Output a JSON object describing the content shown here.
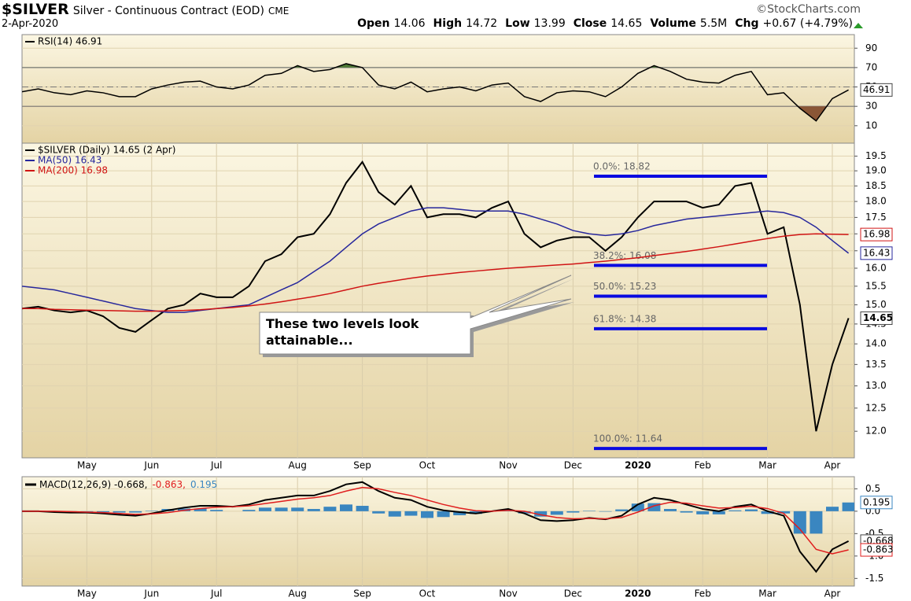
{
  "header": {
    "symbol": "$SILVER",
    "name": "Silver - Continuous Contract (EOD)",
    "exchange": "CME",
    "source": "©StockCharts.com",
    "date": "2-Apr-2020",
    "quote": [
      {
        "label": "Open",
        "value": "14.06"
      },
      {
        "label": "High",
        "value": "14.72"
      },
      {
        "label": "Low",
        "value": "13.99"
      },
      {
        "label": "Close",
        "value": "14.65"
      },
      {
        "label": "Volume",
        "value": "5.5M"
      },
      {
        "label": "Chg",
        "value": "+0.67 (+4.79%)"
      }
    ]
  },
  "chart_data": [
    {
      "type": "line",
      "ylim": [
        -8,
        104
      ],
      "yticks": [
        10,
        30,
        50,
        70,
        90
      ],
      "bands": [
        30,
        70
      ],
      "band_colors": [
        "#8a5636",
        "#4f7a35"
      ],
      "series": [
        {
          "name": "RSI(14) 46.91",
          "color": "#000000",
          "values": [
            45,
            48,
            44,
            42,
            46,
            44,
            40,
            40,
            48,
            52,
            55,
            56,
            50,
            48,
            52,
            62,
            64,
            72,
            66,
            68,
            74,
            70,
            52,
            48,
            55,
            45,
            48,
            50,
            46,
            52,
            54,
            40,
            35,
            44,
            46,
            45,
            40,
            50,
            64,
            72,
            66,
            58,
            55,
            54,
            62,
            66,
            42,
            44,
            28,
            15,
            38,
            46.91
          ]
        }
      ]
    },
    {
      "type": "line",
      "log_scale": true,
      "ylim": [
        11.45,
        19.95
      ],
      "yticks": [
        {
          "value": 12,
          "label": "12.0"
        },
        {
          "value": 12.5,
          "label": "12.5"
        },
        {
          "value": 13,
          "label": "13.0"
        },
        {
          "value": 13.5,
          "label": "13.5"
        },
        {
          "value": 14,
          "label": "14.0"
        },
        {
          "value": 14.5,
          "label": "14.5"
        },
        {
          "value": 15,
          "label": "15.0"
        },
        {
          "value": 15.5,
          "label": "15.5"
        },
        {
          "value": 16,
          "label": "16.0"
        },
        {
          "value": 16.5,
          "label": "16.5"
        },
        {
          "value": 17,
          "label": "17.0"
        },
        {
          "value": 17.5,
          "label": "17.5"
        },
        {
          "value": 18,
          "label": "18.0"
        },
        {
          "value": 18.5,
          "label": "18.5"
        },
        {
          "value": 19,
          "label": "19.0"
        },
        {
          "value": 19.5,
          "label": "19.5"
        }
      ],
      "categories": [
        null,
        null,
        null,
        null,
        "May",
        null,
        null,
        null,
        "Jun",
        null,
        null,
        null,
        "Jul",
        null,
        null,
        null,
        null,
        "Aug",
        null,
        null,
        null,
        "Sep",
        null,
        null,
        null,
        "Oct",
        null,
        null,
        null,
        null,
        "Nov",
        null,
        null,
        null,
        "Dec",
        null,
        null,
        null,
        "2020",
        null,
        null,
        null,
        "Feb",
        null,
        null,
        null,
        "Mar",
        null,
        null,
        null,
        "Apr",
        null
      ],
      "series": [
        {
          "name": "$SILVER (Daily) 14.65 (2 Apr)",
          "color": "#000000",
          "values": [
            14.9,
            14.95,
            14.85,
            14.8,
            14.85,
            14.7,
            14.4,
            14.3,
            14.6,
            14.9,
            15.0,
            15.3,
            15.2,
            15.2,
            15.5,
            16.2,
            16.4,
            16.9,
            17.0,
            17.6,
            18.6,
            19.3,
            18.3,
            17.9,
            18.5,
            17.5,
            17.6,
            17.6,
            17.5,
            17.8,
            18.0,
            17.0,
            16.6,
            16.8,
            16.9,
            16.9,
            16.5,
            16.9,
            17.5,
            18.0,
            18.0,
            18.0,
            17.8,
            17.9,
            18.5,
            18.6,
            17.0,
            17.2,
            15.0,
            12.0,
            13.5,
            14.65
          ]
        },
        {
          "name": "MA(50) 16.43",
          "color": "#27279c",
          "values": [
            15.5,
            15.45,
            15.4,
            15.3,
            15.2,
            15.1,
            15.0,
            14.9,
            14.85,
            14.8,
            14.8,
            14.85,
            14.9,
            14.95,
            15.0,
            15.2,
            15.4,
            15.6,
            15.9,
            16.2,
            16.6,
            17.0,
            17.3,
            17.5,
            17.7,
            17.8,
            17.8,
            17.75,
            17.7,
            17.7,
            17.7,
            17.6,
            17.45,
            17.3,
            17.1,
            17.0,
            16.95,
            17.0,
            17.1,
            17.25,
            17.35,
            17.45,
            17.5,
            17.55,
            17.6,
            17.65,
            17.7,
            17.65,
            17.5,
            17.2,
            16.8,
            16.43
          ]
        },
        {
          "name": "MA(200) 16.98",
          "color": "#d01414",
          "values": [
            14.9,
            14.9,
            14.88,
            14.87,
            14.86,
            14.85,
            14.84,
            14.83,
            14.83,
            14.84,
            14.85,
            14.87,
            14.9,
            14.93,
            14.97,
            15.02,
            15.08,
            15.15,
            15.22,
            15.3,
            15.4,
            15.5,
            15.58,
            15.65,
            15.72,
            15.78,
            15.83,
            15.88,
            15.92,
            15.96,
            16.0,
            16.03,
            16.06,
            16.09,
            16.12,
            16.16,
            16.2,
            16.25,
            16.3,
            16.36,
            16.42,
            16.48,
            16.55,
            16.62,
            16.7,
            16.78,
            16.86,
            16.93,
            16.98,
            17.0,
            16.99,
            16.98
          ]
        }
      ],
      "levels": [
        {
          "label": "0.0%: 18.82",
          "value": 18.82
        },
        {
          "label": "38.2%: 16.08",
          "value": 16.08
        },
        {
          "label": "50.0%: 15.23",
          "value": 15.23
        },
        {
          "label": "61.8%: 14.38",
          "value": 14.38
        },
        {
          "label": "100.0%: 11.64",
          "value": 11.64
        }
      ],
      "level_color": "#0a0ae0",
      "annotation": "These two levels look attainable..."
    },
    {
      "type": "line",
      "ylim": [
        -1.67,
        0.77
      ],
      "yticks": [
        -1.5,
        {
          "value": -1,
          "label": "-1.0"
        },
        -0.5,
        {
          "value": 0,
          "label": "0.0"
        },
        0.5
      ],
      "categories": [
        null,
        null,
        null,
        null,
        "May",
        null,
        null,
        null,
        "Jun",
        null,
        null,
        null,
        "Jul",
        null,
        null,
        null,
        null,
        "Aug",
        null,
        null,
        null,
        "Sep",
        null,
        null,
        null,
        "Oct",
        null,
        null,
        null,
        null,
        "Nov",
        null,
        null,
        null,
        "Dec",
        null,
        null,
        null,
        "2020",
        null,
        null,
        null,
        "Feb",
        null,
        null,
        null,
        "Mar",
        null,
        null,
        null,
        "Apr",
        null
      ],
      "series": [
        {
          "name": "MACD(12,26,9) -0.668,",
          "color": "#000000",
          "values": [
            0,
            0,
            -0.02,
            -0.03,
            -0.03,
            -0.05,
            -0.08,
            -0.1,
            -0.05,
            0.02,
            0.08,
            0.12,
            0.12,
            0.1,
            0.15,
            0.25,
            0.3,
            0.35,
            0.35,
            0.45,
            0.6,
            0.65,
            0.45,
            0.3,
            0.25,
            0.1,
            0.02,
            -0.02,
            -0.05,
            0,
            0.05,
            -0.05,
            -0.2,
            -0.22,
            -0.2,
            -0.15,
            -0.18,
            -0.1,
            0.15,
            0.3,
            0.25,
            0.15,
            0.05,
            0,
            0.1,
            0.15,
            0,
            -0.1,
            -0.9,
            -1.35,
            -0.85,
            -0.668
          ]
        },
        {
          "name": "-0.863,",
          "color": "#e01e1e",
          "values": [
            0,
            0,
            0,
            -0.01,
            -0.02,
            -0.03,
            -0.05,
            -0.07,
            -0.06,
            -0.03,
            0.02,
            0.06,
            0.09,
            0.1,
            0.12,
            0.17,
            0.22,
            0.27,
            0.3,
            0.35,
            0.45,
            0.53,
            0.5,
            0.42,
            0.35,
            0.25,
            0.15,
            0.07,
            0.01,
            0,
            0.02,
            0,
            -0.08,
            -0.14,
            -0.17,
            -0.16,
            -0.17,
            -0.14,
            -0.02,
            0.12,
            0.2,
            0.18,
            0.12,
            0.07,
            0.08,
            0.11,
            0.06,
            -0.05,
            -0.4,
            -0.85,
            -0.95,
            -0.863
          ]
        },
        {
          "name": "0.195",
          "color": "#3a86c0",
          "style": "histogram",
          "values": [
            0,
            0,
            -0.02,
            -0.02,
            -0.01,
            -0.02,
            -0.03,
            -0.03,
            0.01,
            0.05,
            0.06,
            0.06,
            0.03,
            0,
            0.03,
            0.08,
            0.08,
            0.08,
            0.05,
            0.1,
            0.15,
            0.12,
            -0.05,
            -0.12,
            -0.1,
            -0.15,
            -0.13,
            -0.09,
            -0.06,
            0,
            0.03,
            -0.05,
            -0.12,
            -0.08,
            -0.03,
            0.01,
            -0.01,
            0.04,
            0.17,
            0.18,
            0.05,
            -0.03,
            -0.07,
            -0.07,
            0.02,
            0.04,
            -0.06,
            -0.05,
            -0.5,
            -0.5,
            0.1,
            0.195
          ]
        }
      ]
    }
  ]
}
